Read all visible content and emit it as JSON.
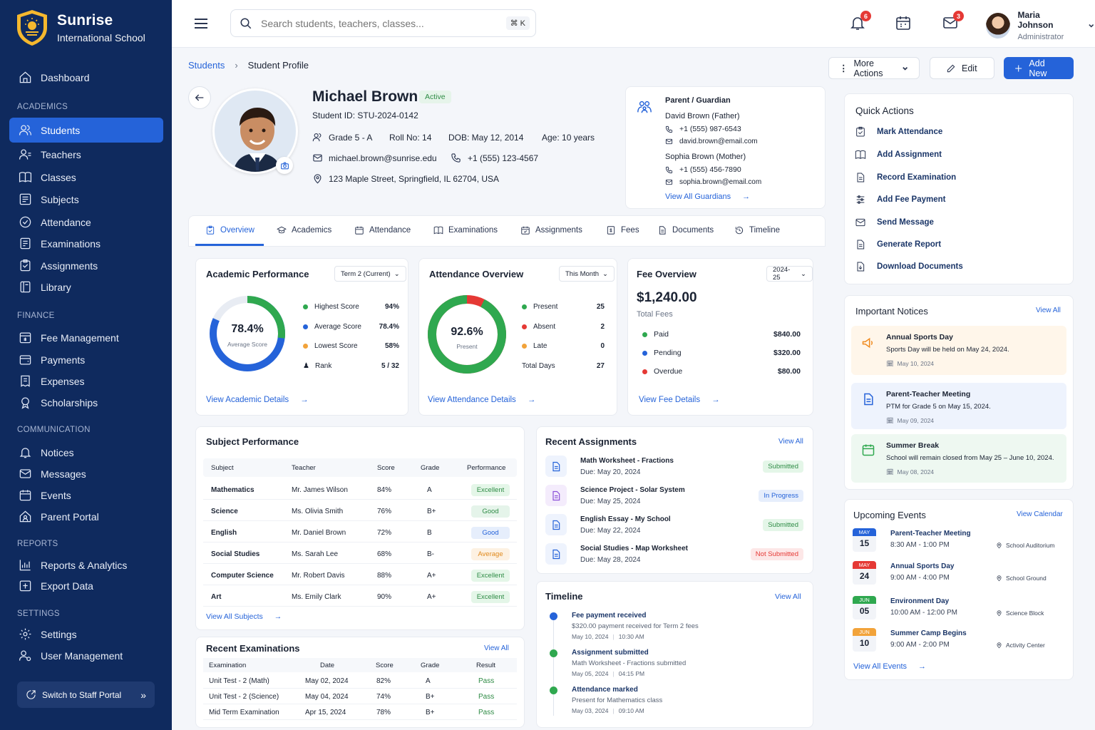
{
  "brand": {
    "name": "Sunrise",
    "subtitle": "International School"
  },
  "sidebar": {
    "dashboard": "Dashboard",
    "sections": {
      "academics": "ACADEMICS",
      "finance": "FINANCE",
      "communication": "COMMUNICATION",
      "reports": "REPORTS",
      "settings": "SETTINGS"
    },
    "items": {
      "students": "Students",
      "teachers": "Teachers",
      "classes": "Classes",
      "subjects": "Subjects",
      "attendance": "Attendance",
      "examinations": "Examinations",
      "assignments": "Assignments",
      "library": "Library",
      "fee": "Fee Management",
      "payments": "Payments",
      "expenses": "Expenses",
      "scholarships": "Scholarships",
      "notices": "Notices",
      "messages": "Messages",
      "events": "Events",
      "parent_portal": "Parent Portal",
      "reports": "Reports & Analytics",
      "export": "Export Data",
      "settings": "Settings",
      "user_mgmt": "User Management"
    },
    "switch": "Switch to Staff Portal"
  },
  "topbar": {
    "search_placeholder": "Search students, teachers, classes...",
    "shortcut": "⌘ K",
    "notif_count": "6",
    "mail_count": "3",
    "user_name": "Maria Johnson",
    "user_role": "Administrator"
  },
  "breadcrumb": {
    "parent": "Students",
    "current": "Student Profile"
  },
  "actions": {
    "more": "More Actions",
    "edit": "Edit",
    "add": "Add New"
  },
  "student": {
    "name": "Michael Brown",
    "status": "Active",
    "id": "Student ID: STU-2024-0142",
    "grade": "Grade 5 - A",
    "roll": "Roll No: 14",
    "dob": "DOB: May 12, 2014",
    "age": "Age: 10 years",
    "email": "michael.brown@sunrise.edu",
    "phone": "+1 (555) 123-4567",
    "address": "123 Maple Street, Springfield, IL 62704, USA"
  },
  "guardians": {
    "title": "Parent / Guardian",
    "father": "David Brown (Father)",
    "father_phone": "+1 (555) 987-6543",
    "father_email": "david.brown@email.com",
    "mother": "Sophia Brown (Mother)",
    "mother_phone": "+1 (555) 456-7890",
    "mother_email": "sophia.brown@email.com",
    "link": "View All Guardians"
  },
  "tabs": [
    "Overview",
    "Academics",
    "Attendance",
    "Examinations",
    "Assignments",
    "Fees",
    "Documents",
    "Timeline"
  ],
  "academic": {
    "title": "Academic Performance",
    "filter": "Term 2 (Current)",
    "value": "78.4%",
    "label": "Average Score",
    "fraction": 0.784,
    "legend": [
      {
        "label": "Highest Score",
        "value": "94%",
        "color": "#2fa84f"
      },
      {
        "label": "Average Score",
        "value": "78.4%",
        "color": "#2563d9"
      },
      {
        "label": "Lowest Score",
        "value": "58%",
        "color": "#f2a33a"
      },
      {
        "label": "Rank",
        "value": "5 / 32"
      }
    ],
    "link": "View Academic Details"
  },
  "attendance": {
    "title": "Attendance Overview",
    "filter": "This Month",
    "value": "92.6%",
    "label": "Present",
    "present_fraction": 0.926,
    "legend": [
      {
        "label": "Present",
        "value": "25",
        "color": "#2fa84f"
      },
      {
        "label": "Absent",
        "value": "2",
        "color": "#e53935"
      },
      {
        "label": "Late",
        "value": "0",
        "color": "#f2a33a"
      },
      {
        "label": "Total Days",
        "value": "27"
      }
    ],
    "link": "View Attendance Details"
  },
  "fees": {
    "title": "Fee Overview",
    "filter": "2024-25",
    "total": "$1,240.00",
    "total_label": "Total Fees",
    "rows": [
      {
        "label": "Paid",
        "value": "$840.00",
        "color": "#2fa84f"
      },
      {
        "label": "Pending",
        "value": "$320.00",
        "color": "#2563d9"
      },
      {
        "label": "Overdue",
        "value": "$80.00",
        "color": "#e53935"
      }
    ],
    "link": "View Fee Details"
  },
  "subjects": {
    "title": "Subject Performance",
    "headers": [
      "Subject",
      "Teacher",
      "Score",
      "Grade",
      "Performance"
    ],
    "rows": [
      {
        "subject": "Mathematics",
        "teacher": "Mr. James Wilson",
        "score": "84%",
        "grade": "A",
        "perf": "Excellent",
        "cls": "p-ex"
      },
      {
        "subject": "Science",
        "teacher": "Ms. Olivia Smith",
        "score": "76%",
        "grade": "B+",
        "perf": "Good",
        "cls": "p-good"
      },
      {
        "subject": "English",
        "teacher": "Mr. Daniel Brown",
        "score": "72%",
        "grade": "B",
        "perf": "Good",
        "cls": "p-gb"
      },
      {
        "subject": "Social Studies",
        "teacher": "Ms. Sarah Lee",
        "score": "68%",
        "grade": "B-",
        "perf": "Average",
        "cls": "p-av"
      },
      {
        "subject": "Computer Science",
        "teacher": "Mr. Robert Davis",
        "score": "88%",
        "grade": "A+",
        "perf": "Excellent",
        "cls": "p-ex"
      },
      {
        "subject": "Art",
        "teacher": "Ms. Emily Clark",
        "score": "90%",
        "grade": "A+",
        "perf": "Excellent",
        "cls": "p-ex"
      }
    ],
    "link": "View All Subjects"
  },
  "exams": {
    "title": "Recent Examinations",
    "view_all": "View All",
    "headers": [
      "Examination",
      "Date",
      "Score",
      "Grade",
      "Result"
    ],
    "rows": [
      {
        "name": "Unit Test - 2 (Math)",
        "date": "May 02, 2024",
        "score": "82%",
        "grade": "A",
        "result": "Pass"
      },
      {
        "name": "Unit Test - 2 (Science)",
        "date": "May 04, 2024",
        "score": "74%",
        "grade": "B+",
        "result": "Pass"
      },
      {
        "name": "Mid Term Examination",
        "date": "Apr 15, 2024",
        "score": "78%",
        "grade": "B+",
        "result": "Pass"
      }
    ]
  },
  "assignments": {
    "title": "Recent Assignments",
    "view_all": "View All",
    "rows": [
      {
        "title": "Math Worksheet - Fractions",
        "due": "Due: May 20, 2024",
        "status": "Submitted",
        "cls": "p-sub"
      },
      {
        "title": "Science Project - Solar System",
        "due": "Due: May 25, 2024",
        "status": "In Progress",
        "cls": "p-prog"
      },
      {
        "title": "English Essay - My School",
        "due": "Due: May 22, 2024",
        "status": "Submitted",
        "cls": "p-sub"
      },
      {
        "title": "Social Studies - Map Worksheet",
        "due": "Due: May 28, 2024",
        "status": "Not Submitted",
        "cls": "p-ns"
      }
    ]
  },
  "timeline": {
    "title": "Timeline",
    "view_all": "View All",
    "items": [
      {
        "title": "Fee payment received",
        "desc": "$320.00 payment received for Term 2 fees",
        "date": "May 10, 2024",
        "time": "10:30 AM",
        "color": "#2563d9"
      },
      {
        "title": "Assignment submitted",
        "desc": "Math Worksheet - Fractions submitted",
        "date": "May 05, 2024",
        "time": "04:15 PM",
        "color": "#2fa84f"
      },
      {
        "title": "Attendance marked",
        "desc": "Present for Mathematics class",
        "date": "May 03, 2024",
        "time": "09:10 AM",
        "color": "#2fa84f"
      }
    ]
  },
  "quick_actions": {
    "title": "Quick Actions",
    "items": [
      "Mark Attendance",
      "Add Assignment",
      "Record Examination",
      "Add Fee Payment",
      "Send Message",
      "Generate Report",
      "Download Documents"
    ]
  },
  "notices": {
    "title": "Important Notices",
    "view_all": "View All",
    "items": [
      {
        "title": "Annual Sports Day",
        "desc": "Sports Day will be held on May 24, 2024.",
        "date": "May 10, 2024"
      },
      {
        "title": "Parent-Teacher Meeting",
        "desc": "PTM for Grade 5 on May 15, 2024.",
        "date": "May 09, 2024"
      },
      {
        "title": "Summer Break",
        "desc": "School will remain closed from May 25 – June 10, 2024.",
        "date": "May 08, 2024"
      }
    ]
  },
  "events": {
    "title": "Upcoming Events",
    "view_all": "View Calendar",
    "link": "View All Events",
    "items": [
      {
        "month": "MAY",
        "day": "15",
        "title": "Parent-Teacher Meeting",
        "time": "8:30 AM - 1:00 PM",
        "place": "School Auditorium",
        "color": "#2563d9"
      },
      {
        "month": "MAY",
        "day": "24",
        "title": "Annual Sports Day",
        "time": "9:00 AM - 4:00 PM",
        "place": "School Ground",
        "color": "#e53935"
      },
      {
        "month": "JUN",
        "day": "05",
        "title": "Environment Day",
        "time": "10:00 AM - 12:00 PM",
        "place": "Science Block",
        "color": "#2fa84f"
      },
      {
        "month": "JUN",
        "day": "10",
        "title": "Summer Camp Begins",
        "time": "9:00 AM - 2:00 PM",
        "place": "Activity Center",
        "color": "#f2a33a"
      }
    ]
  }
}
